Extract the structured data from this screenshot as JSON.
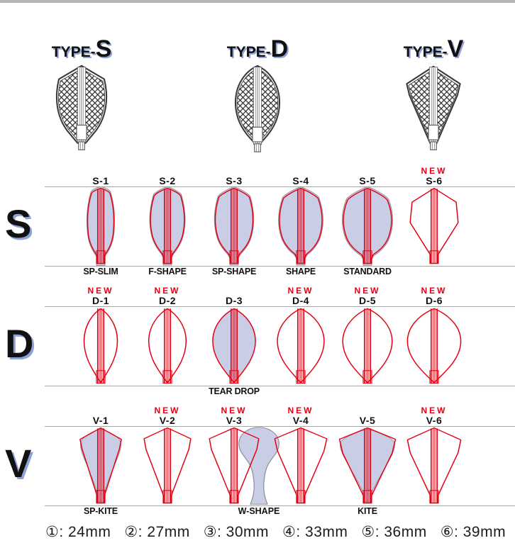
{
  "colors": {
    "red": "#e60012",
    "lavender_fill": "#c9cee6",
    "fill_stroke": "#8d8d96",
    "shadow_blue": "#8fa2d6",
    "hairline": "#a6a6a6",
    "top_bar": "#b5b5b5",
    "ink": "#111111"
  },
  "header": {
    "types": [
      {
        "prefix": "TYPE-",
        "letter": "S",
        "icon": "type-s-flight-crosshatch"
      },
      {
        "prefix": "TYPE-",
        "letter": "D",
        "icon": "type-d-flight-crosshatch"
      },
      {
        "prefix": "TYPE-",
        "letter": "V",
        "icon": "type-v-flight-crosshatch"
      }
    ]
  },
  "new_badge_label": "NEW",
  "rows": [
    {
      "letter": "S",
      "cells": [
        {
          "code": "S-1",
          "is_new": false,
          "caption": "SP-SLIM",
          "shape": "s1",
          "filled": true
        },
        {
          "code": "S-2",
          "is_new": false,
          "caption": "F-SHAPE",
          "shape": "s2",
          "filled": true
        },
        {
          "code": "S-3",
          "is_new": false,
          "caption": "SP-SHAPE",
          "shape": "s3",
          "filled": true
        },
        {
          "code": "S-4",
          "is_new": false,
          "caption": "SHAPE",
          "shape": "s4",
          "filled": true
        },
        {
          "code": "S-5",
          "is_new": false,
          "caption": "STANDARD",
          "shape": "s5",
          "filled": true
        },
        {
          "code": "S-6",
          "is_new": true,
          "caption": "",
          "shape": "s6",
          "filled": false
        }
      ]
    },
    {
      "letter": "D",
      "cells": [
        {
          "code": "D-1",
          "is_new": true,
          "caption": "",
          "shape": "d1",
          "filled": false
        },
        {
          "code": "D-2",
          "is_new": true,
          "caption": "",
          "shape": "d2",
          "filled": false
        },
        {
          "code": "D-3",
          "is_new": false,
          "caption": "TEAR DROP",
          "shape": "d3",
          "filled": true
        },
        {
          "code": "D-4",
          "is_new": true,
          "caption": "",
          "shape": "d4",
          "filled": false
        },
        {
          "code": "D-5",
          "is_new": true,
          "caption": "",
          "shape": "d5",
          "filled": false
        },
        {
          "code": "D-6",
          "is_new": true,
          "caption": "",
          "shape": "d6",
          "filled": false
        }
      ]
    },
    {
      "letter": "V",
      "cells": [
        {
          "code": "V-1",
          "is_new": false,
          "caption": "SP-KITE",
          "shape": "v1",
          "filled": true
        },
        {
          "code": "V-2",
          "is_new": true,
          "caption": "",
          "shape": "v2",
          "filled": false
        },
        {
          "code": "V-3",
          "is_new": true,
          "caption": "",
          "shape": "v3",
          "filled": false
        },
        {
          "code": "V-4",
          "is_new": true,
          "caption": "",
          "shape": "v4",
          "filled": false
        },
        {
          "code": "V-5",
          "is_new": false,
          "caption": "KITE",
          "shape": "v5",
          "filled": true
        },
        {
          "code": "V-6",
          "is_new": true,
          "caption": "",
          "shape": "v6",
          "filled": false
        }
      ],
      "overlay": {
        "caption": "W-SHAPE",
        "shape": "wshape"
      }
    }
  ],
  "legend": {
    "items": [
      {
        "text": "①: 24mm"
      },
      {
        "text": "②: 27mm"
      },
      {
        "text": "③: 30mm"
      },
      {
        "text": "④: 33mm"
      },
      {
        "text": "⑤: 36mm"
      },
      {
        "text": "⑥: 39mm"
      }
    ]
  }
}
